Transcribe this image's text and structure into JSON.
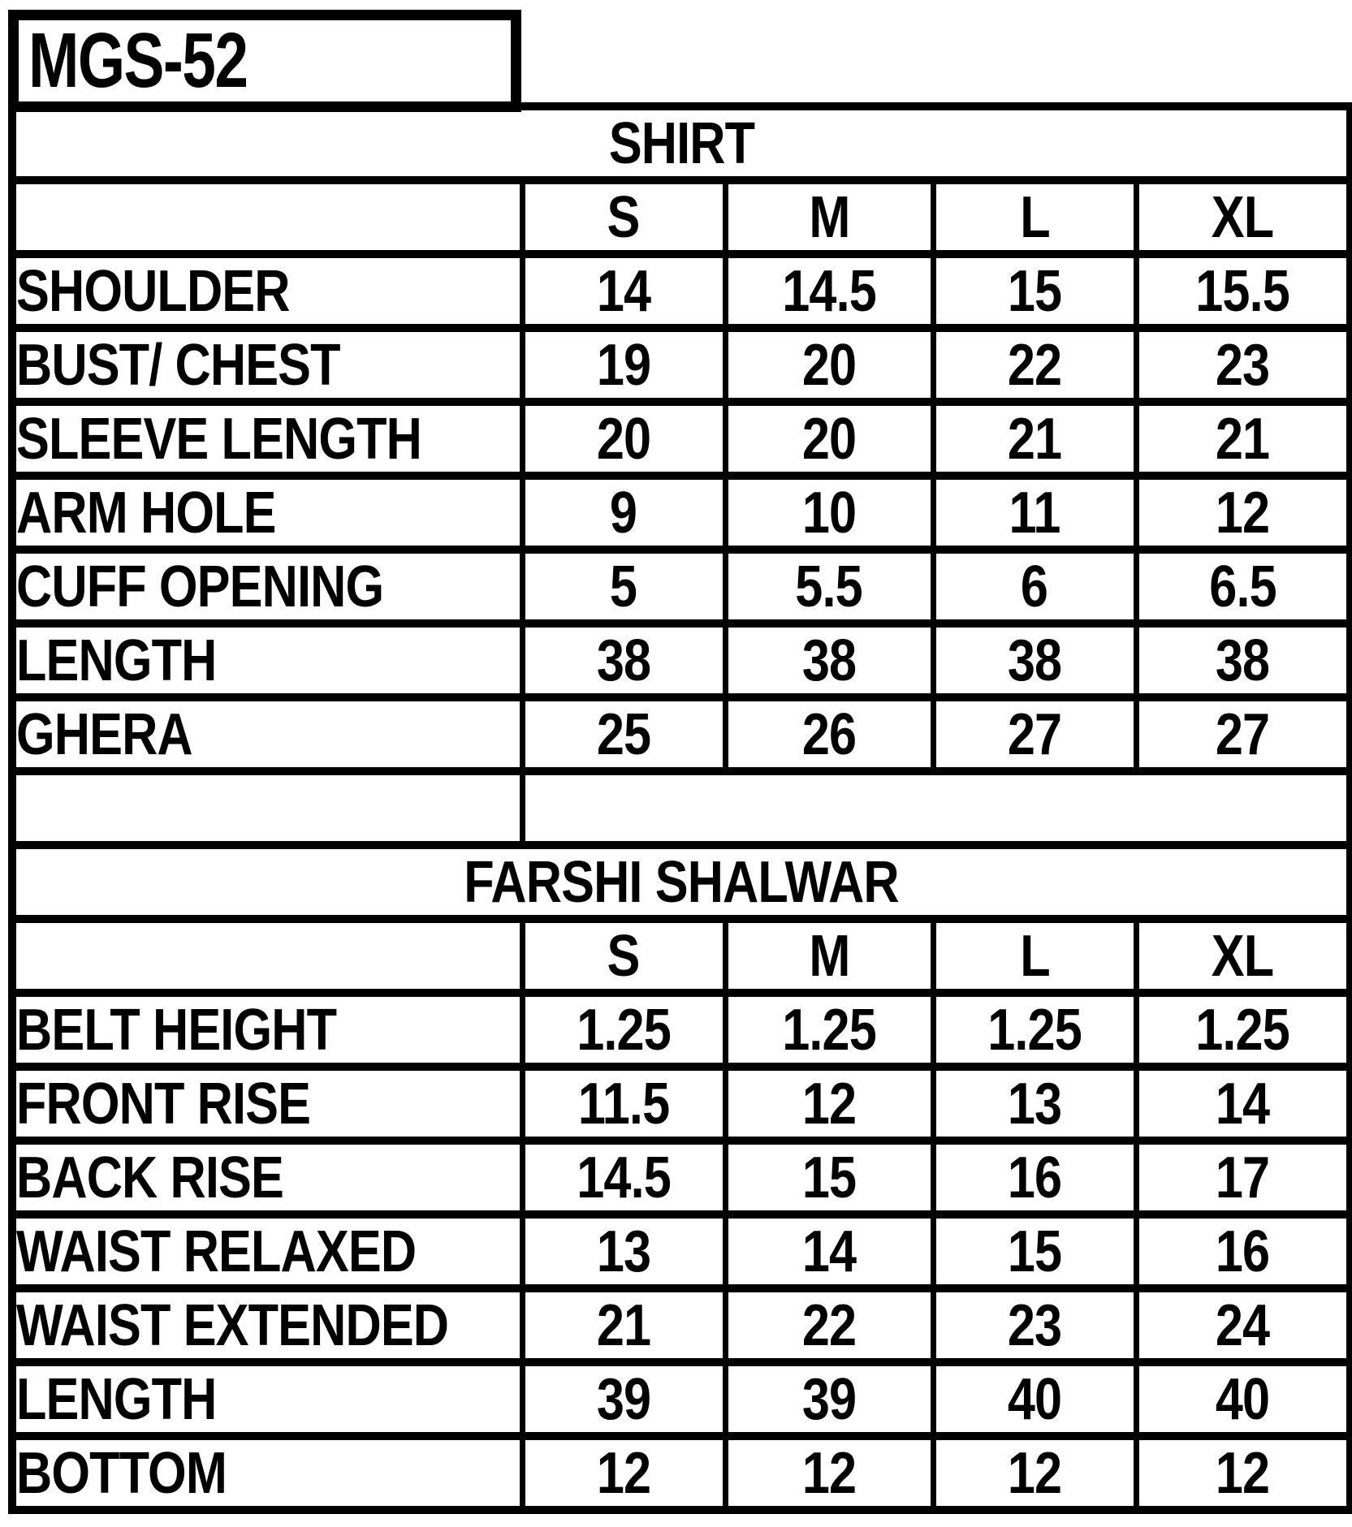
{
  "product_code": "MGS-52",
  "colors": {
    "ink": "#000000",
    "background": "#ffffff"
  },
  "sections": [
    {
      "title": "SHIRT",
      "sizes": [
        "S",
        "M",
        "L",
        "XL"
      ],
      "rows": [
        {
          "label": "SHOULDER",
          "values": [
            "14",
            "14.5",
            "15",
            "15.5"
          ]
        },
        {
          "label": "BUST/ CHEST",
          "values": [
            "19",
            "20",
            "22",
            "23"
          ]
        },
        {
          "label": "SLEEVE LENGTH",
          "values": [
            "20",
            "20",
            "21",
            "21"
          ]
        },
        {
          "label": "ARM HOLE",
          "values": [
            "9",
            "10",
            "11",
            "12"
          ]
        },
        {
          "label": "CUFF OPENING",
          "values": [
            "5",
            "5.5",
            "6",
            "6.5"
          ]
        },
        {
          "label": "LENGTH",
          "values": [
            "38",
            "38",
            "38",
            "38"
          ]
        },
        {
          "label": "GHERA",
          "values": [
            "25",
            "26",
            "27",
            "27"
          ]
        }
      ]
    },
    {
      "title": "FARSHI SHALWAR",
      "sizes": [
        "S",
        "M",
        "L",
        "XL"
      ],
      "rows": [
        {
          "label": "BELT HEIGHT",
          "values": [
            "1.25",
            "1.25",
            "1.25",
            "1.25"
          ]
        },
        {
          "label": "FRONT RISE",
          "values": [
            "11.5",
            "12",
            "13",
            "14"
          ]
        },
        {
          "label": "BACK RISE",
          "values": [
            "14.5",
            "15",
            "16",
            "17"
          ]
        },
        {
          "label": "WAIST RELAXED",
          "values": [
            "13",
            "14",
            "15",
            "16"
          ]
        },
        {
          "label": "WAIST EXTENDED",
          "values": [
            "21",
            "22",
            "23",
            "24"
          ]
        },
        {
          "label": "LENGTH",
          "values": [
            "39",
            "39",
            "40",
            "40"
          ]
        },
        {
          "label": "BOTTOM",
          "values": [
            "12",
            "12",
            "12",
            "12"
          ]
        }
      ]
    }
  ]
}
